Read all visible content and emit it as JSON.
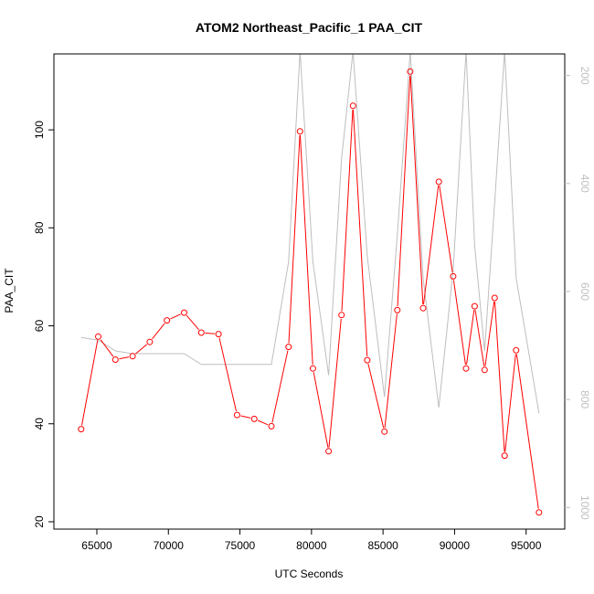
{
  "chart_data": {
    "type": "line",
    "title": "ATOM2 Northeast_Pacific_1 PAA_CIT",
    "xlabel": "UTC Seconds",
    "ylabel": "PAA_CIT",
    "xlim": [
      62000,
      97700
    ],
    "ylim": [
      18.5,
      115.5
    ],
    "x_ticks": [
      65000,
      70000,
      75000,
      80000,
      85000,
      90000,
      95000
    ],
    "x_tick_labels": [
      "65000",
      "70000",
      "75000",
      "80000",
      "85000",
      "90000",
      "95000"
    ],
    "y_ticks": [
      20,
      40,
      60,
      80,
      100
    ],
    "y_tick_labels": [
      "20",
      "40",
      "60",
      "80",
      "100"
    ],
    "secondary_axis": {
      "side": "right",
      "reversed": true,
      "ylim": [
        1040,
        160
      ],
      "ticks": [
        200,
        400,
        600,
        800,
        1000
      ],
      "tick_labels": [
        "200",
        "400",
        "600",
        "800",
        "1000"
      ],
      "color": "#bebebe"
    },
    "series": [
      {
        "color": "#ff0000",
        "marker": "open-circle",
        "x": [
          63900,
          65100,
          66300,
          67500,
          68700,
          69900,
          71100,
          72300,
          73500,
          74800,
          76000,
          77200,
          78400,
          79200,
          80100,
          81200,
          82100,
          82900,
          83900,
          85100,
          86000,
          86900,
          87800,
          88900,
          89900,
          90800,
          91400,
          92100,
          92800,
          93500,
          94300,
          95900
        ],
        "y": [
          38.9,
          57.8,
          53.1,
          53.8,
          56.7,
          61.1,
          62.7,
          58.6,
          58.3,
          41.8,
          41.0,
          39.5,
          55.7,
          99.7,
          51.3,
          34.4,
          62.2,
          104.9,
          53.0,
          38.4,
          63.2,
          111.9,
          63.6,
          89.4,
          70.1,
          51.3,
          64.0,
          51.0,
          65.7,
          33.5,
          55.0,
          21.9
        ]
      },
      {
        "color": "#bebebe",
        "marker": "none",
        "axis": "right",
        "x": [
          63900,
          65100,
          66300,
          67500,
          68700,
          69900,
          71100,
          72300,
          73500,
          74800,
          76000,
          77200,
          78400,
          79200,
          80100,
          81200,
          82100,
          82900,
          83900,
          85100,
          86000,
          86900,
          87800,
          88900,
          89900,
          90800,
          91400,
          92100,
          92800,
          93500,
          94300,
          95900
        ],
        "y": [
          685,
          690,
          710,
          715,
          715,
          715,
          715,
          735,
          735,
          735,
          735,
          735,
          545,
          155,
          545,
          755,
          355,
          155,
          535,
          795,
          495,
          155,
          575,
          815,
          560,
          155,
          515,
          710,
          435,
          155,
          575,
          825
        ]
      }
    ]
  }
}
